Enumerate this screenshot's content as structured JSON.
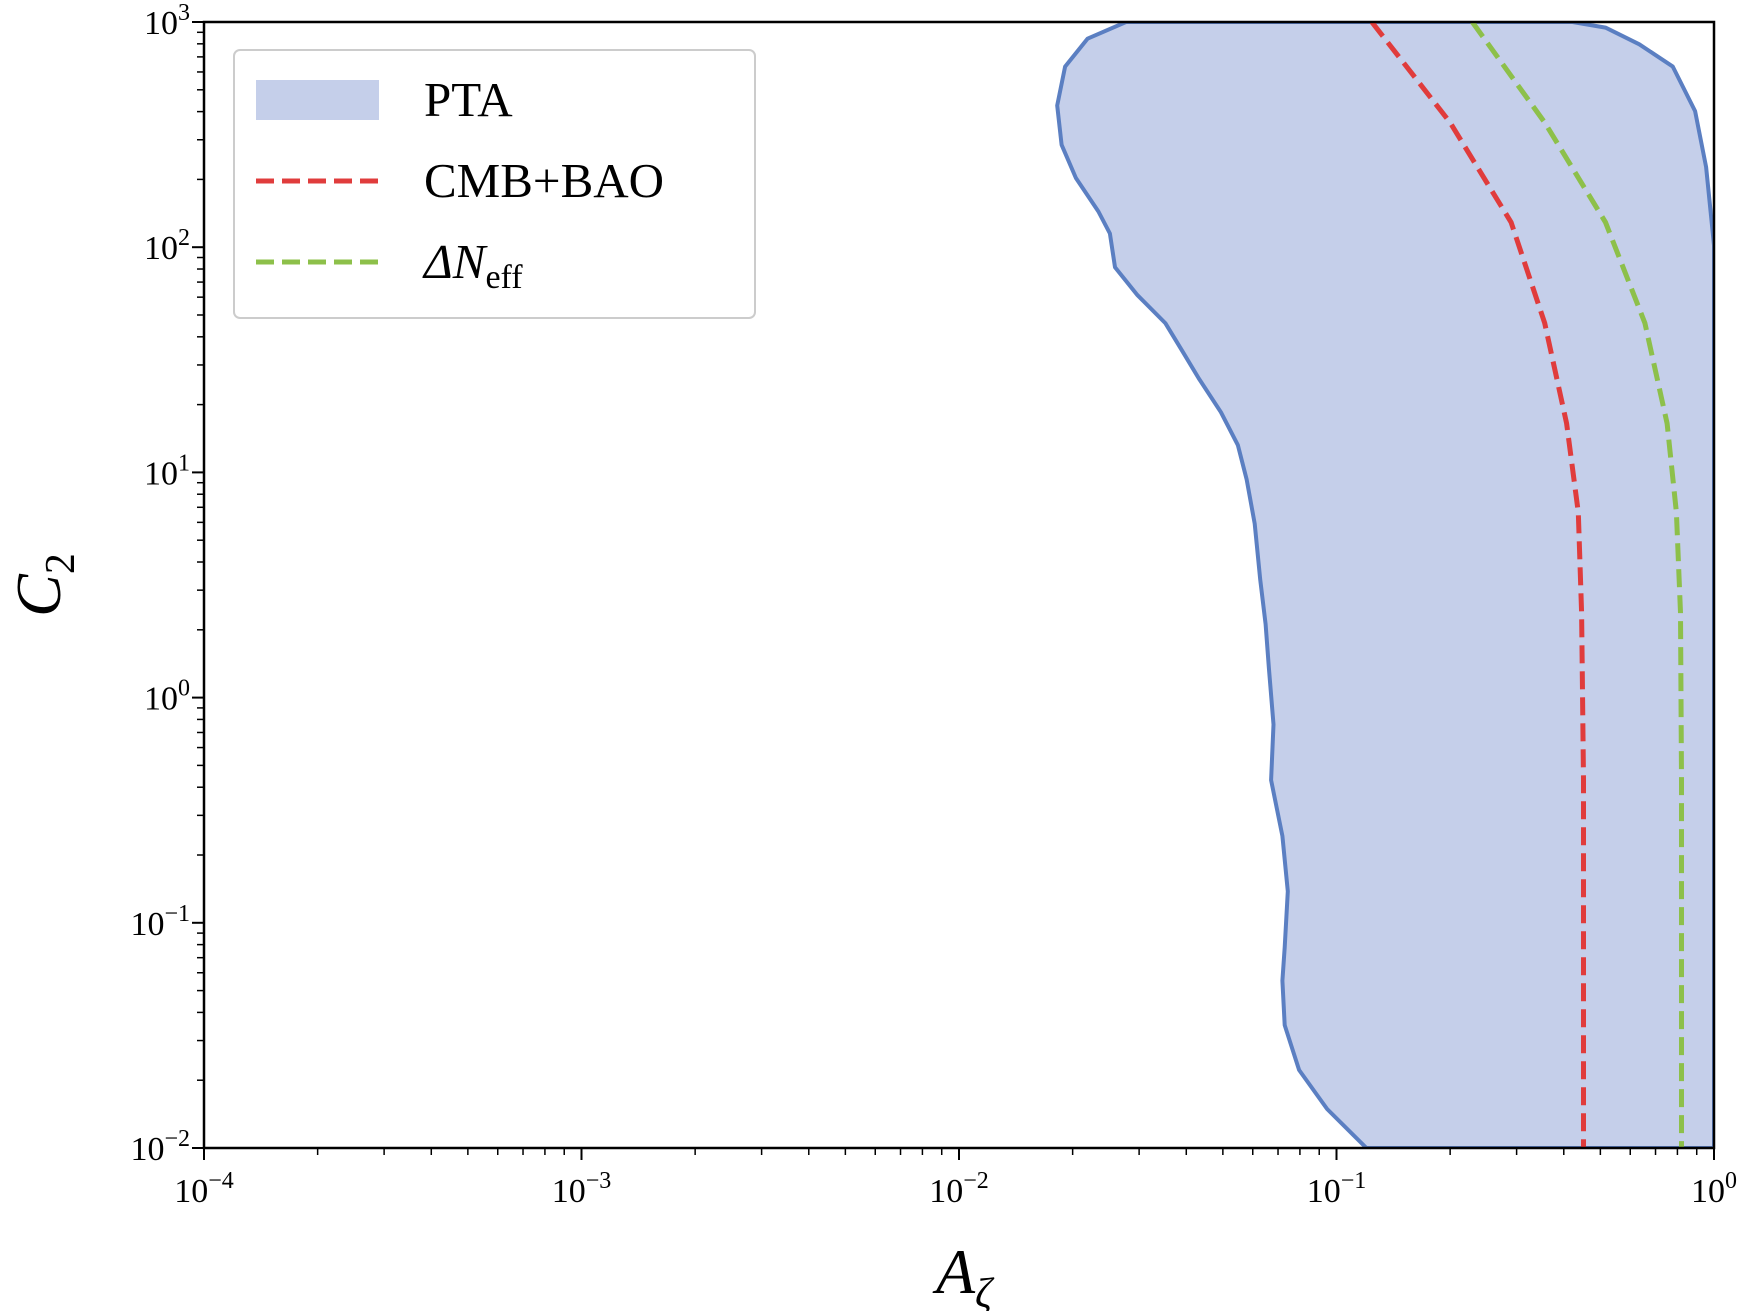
{
  "chart_data": {
    "type": "line",
    "xscale": "log",
    "yscale": "log",
    "xlabel": "A",
    "xlabel_sub": "ζ",
    "ylabel": "C",
    "ylabel_sub": "2",
    "xlim": [
      0.0001,
      1
    ],
    "ylim": [
      0.01,
      1000
    ],
    "xticks": [
      {
        "value": 0.0001,
        "label": "10",
        "exponent": "−4"
      },
      {
        "value": 0.001,
        "label": "10",
        "exponent": "−3"
      },
      {
        "value": 0.01,
        "label": "10",
        "exponent": "−2"
      },
      {
        "value": 0.1,
        "label": "10",
        "exponent": "−1"
      },
      {
        "value": 1,
        "label": "10",
        "exponent": "0"
      }
    ],
    "yticks": [
      {
        "value": 0.01,
        "label": "10",
        "exponent": "−2"
      },
      {
        "value": 0.1,
        "label": "10",
        "exponent": "−1"
      },
      {
        "value": 1,
        "label": "10",
        "exponent": "0"
      },
      {
        "value": 10,
        "label": "10",
        "exponent": "1"
      },
      {
        "value": 100,
        "label": "10",
        "exponent": "2"
      },
      {
        "value": 1000,
        "label": "10",
        "exponent": "3"
      }
    ],
    "legend": "upper left",
    "series": [
      {
        "name": "PTA",
        "kind": "fill",
        "color": "#c5cfea",
        "edgecolor": "#5b7fc2",
        "x": [
          0.0277,
          0.0219,
          0.0191,
          0.0182,
          0.0187,
          0.0204,
          0.0234,
          0.0251,
          0.0259,
          0.0297,
          0.0352,
          0.039,
          0.0432,
          0.0494,
          0.0548,
          0.0578,
          0.0607,
          0.0628,
          0.0649,
          0.0662,
          0.0681,
          0.0671,
          0.0719,
          0.0743,
          0.0729,
          0.0719,
          0.0729,
          0.0796,
          0.0944,
          0.12,
          1,
          1,
          0.953,
          0.891,
          0.778,
          0.634,
          0.516,
          0.422
        ],
        "y": [
          1000,
          843,
          634,
          426,
          285,
          203,
          144,
          115,
          81.5,
          61.2,
          46,
          34.7,
          26.1,
          18.5,
          13.2,
          9.33,
          5.92,
          3.35,
          2.12,
          1.35,
          0.76,
          0.43,
          0.243,
          0.138,
          0.0778,
          0.0553,
          0.0351,
          0.0222,
          0.0149,
          0.01,
          0.01,
          102,
          227,
          402,
          634,
          796,
          944,
          1000
        ]
      },
      {
        "name": "CMB+BAO",
        "kind": "dashed",
        "color": "#e03c3c",
        "x": [
          0.124,
          0.2,
          0.29,
          0.356,
          0.407,
          0.437,
          0.446,
          0.451,
          0.451
        ],
        "y": [
          1000,
          358,
          129,
          46,
          16.5,
          6.64,
          2.38,
          0.43,
          0.01
        ]
      },
      {
        "name": "ΔN",
        "name_sub": "eff",
        "kind": "dashed",
        "color": "#8dc04a",
        "x": [
          0.229,
          0.356,
          0.516,
          0.656,
          0.751,
          0.795,
          0.815,
          0.82,
          0.82
        ],
        "y": [
          1000,
          358,
          129,
          46,
          16.5,
          6.64,
          2.38,
          0.43,
          0.01
        ]
      }
    ]
  }
}
